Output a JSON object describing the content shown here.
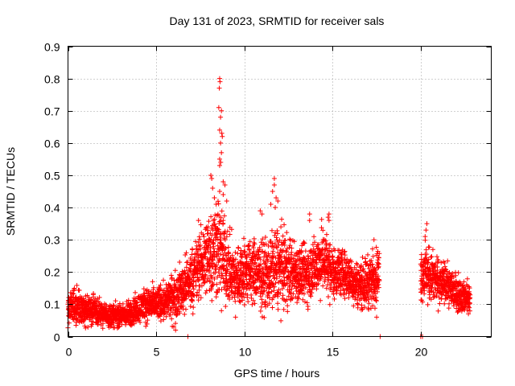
{
  "chart_data": {
    "type": "scatter",
    "title": "Day 131 of 2023, SRMTID for receiver sals",
    "xlabel": "GPS time / hours",
    "ylabel": "SRMTID / TECUs",
    "xlim": [
      0,
      24
    ],
    "ylim": [
      0,
      0.9
    ],
    "xticks": [
      0,
      5,
      10,
      15,
      20
    ],
    "xtick_labels": [
      "0",
      "5",
      "10",
      "15",
      "20"
    ],
    "yticks": [
      0,
      0.1,
      0.2,
      0.3,
      0.4,
      0.5,
      0.6,
      0.7,
      0.8,
      0.9
    ],
    "ytick_labels": [
      "0",
      "0.1",
      "0.2",
      "0.3",
      "0.4",
      "0.5",
      "0.6",
      "0.7",
      "0.8",
      "0.9"
    ],
    "grid": true,
    "marker": "+",
    "color": "#ff0000",
    "series": [
      {
        "name": "SRMTID",
        "segments": [
          {
            "t": [
              0.0,
              0.5,
              1.0,
              1.5,
              2.0,
              2.5,
              3.0,
              3.5,
              4.0,
              4.5,
              5.0,
              5.5,
              6.0,
              6.5,
              7.0,
              7.5,
              8.0,
              8.5,
              9.0,
              9.5,
              10.0,
              10.5,
              11.0,
              11.5,
              12.0,
              12.5,
              13.0,
              13.5,
              14.0,
              14.5,
              15.0,
              15.5,
              16.0,
              16.5,
              17.0,
              17.5,
              17.65
            ],
            "center": [
              0.09,
              0.09,
              0.08,
              0.08,
              0.07,
              0.065,
              0.065,
              0.07,
              0.09,
              0.1,
              0.1,
              0.11,
              0.12,
              0.15,
              0.18,
              0.22,
              0.26,
              0.28,
              0.22,
              0.18,
              0.2,
              0.2,
              0.19,
              0.2,
              0.22,
              0.2,
              0.2,
              0.19,
              0.22,
              0.24,
              0.2,
              0.2,
              0.18,
              0.16,
              0.17,
              0.19,
              0.2
            ],
            "spread": [
              0.05,
              0.05,
              0.04,
              0.04,
              0.03,
              0.03,
              0.03,
              0.035,
              0.04,
              0.045,
              0.045,
              0.05,
              0.06,
              0.07,
              0.08,
              0.09,
              0.12,
              0.14,
              0.1,
              0.08,
              0.09,
              0.09,
              0.09,
              0.1,
              0.11,
              0.09,
              0.08,
              0.08,
              0.08,
              0.09,
              0.07,
              0.06,
              0.06,
              0.06,
              0.07,
              0.07,
              0.06
            ],
            "density": 190
          },
          {
            "t": [
              20.0,
              20.5,
              21.0,
              21.5,
              22.0,
              22.5,
              22.8
            ],
            "center": [
              0.2,
              0.19,
              0.17,
              0.16,
              0.14,
              0.12,
              0.12
            ],
            "spread": [
              0.08,
              0.07,
              0.06,
              0.05,
              0.05,
              0.04,
              0.04
            ],
            "density": 190
          }
        ],
        "peaks": [
          {
            "x": 8.6,
            "y": 0.8
          },
          {
            "x": 8.62,
            "y": 0.79
          },
          {
            "x": 8.58,
            "y": 0.77
          },
          {
            "x": 8.55,
            "y": 0.71
          },
          {
            "x": 8.7,
            "y": 0.7
          },
          {
            "x": 8.65,
            "y": 0.68
          },
          {
            "x": 8.6,
            "y": 0.64
          },
          {
            "x": 8.72,
            "y": 0.63
          },
          {
            "x": 8.75,
            "y": 0.62
          },
          {
            "x": 8.65,
            "y": 0.6
          },
          {
            "x": 8.7,
            "y": 0.57
          },
          {
            "x": 8.6,
            "y": 0.55
          },
          {
            "x": 8.66,
            "y": 0.54
          },
          {
            "x": 8.6,
            "y": 0.53
          },
          {
            "x": 8.1,
            "y": 0.5
          },
          {
            "x": 8.15,
            "y": 0.49
          },
          {
            "x": 8.8,
            "y": 0.48
          },
          {
            "x": 8.9,
            "y": 0.47
          },
          {
            "x": 8.2,
            "y": 0.46
          },
          {
            "x": 8.6,
            "y": 0.45
          },
          {
            "x": 8.3,
            "y": 0.43
          },
          {
            "x": 8.8,
            "y": 0.44
          },
          {
            "x": 8.4,
            "y": 0.41
          },
          {
            "x": 9.0,
            "y": 0.42
          },
          {
            "x": 11.7,
            "y": 0.49
          },
          {
            "x": 11.7,
            "y": 0.47
          },
          {
            "x": 11.6,
            "y": 0.45
          },
          {
            "x": 11.8,
            "y": 0.43
          },
          {
            "x": 11.9,
            "y": 0.42
          },
          {
            "x": 11.5,
            "y": 0.41
          },
          {
            "x": 11.75,
            "y": 0.4
          },
          {
            "x": 10.9,
            "y": 0.39
          },
          {
            "x": 11.0,
            "y": 0.38
          },
          {
            "x": 13.7,
            "y": 0.38
          },
          {
            "x": 14.8,
            "y": 0.38
          },
          {
            "x": 14.75,
            "y": 0.37
          },
          {
            "x": 14.8,
            "y": 0.36
          },
          {
            "x": 13.7,
            "y": 0.36
          },
          {
            "x": 8.8,
            "y": 0.36
          },
          {
            "x": 7.4,
            "y": 0.36
          },
          {
            "x": 20.35,
            "y": 0.35
          },
          {
            "x": 20.3,
            "y": 0.33
          },
          {
            "x": 20.25,
            "y": 0.31
          },
          {
            "x": 17.35,
            "y": 0.3
          },
          {
            "x": 8.7,
            "y": 0.08
          },
          {
            "x": 9.5,
            "y": 0.06
          },
          {
            "x": 17.5,
            "y": 0.06
          },
          {
            "x": 6.1,
            "y": 0.02
          },
          {
            "x": 6.0,
            "y": 0.03
          }
        ],
        "zero_marks": [
          6.8,
          17.7,
          20.0,
          20.1
        ]
      }
    ]
  }
}
